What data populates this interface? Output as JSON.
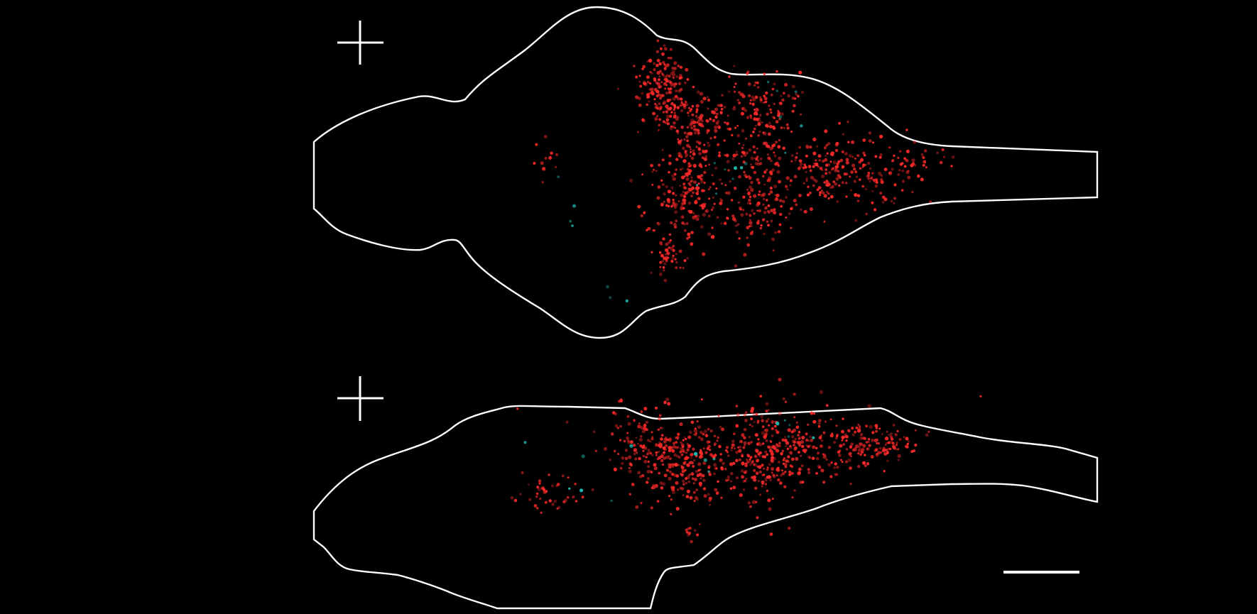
{
  "figure": {
    "background_color": "#000000",
    "outline_color": "#ffffff",
    "primary_cell_color": "#ff2a2a",
    "secondary_cell_color": "#1fb8b0",
    "panels": [
      {
        "id": "dorsal-view",
        "orientation_marker": "cross-icon",
        "outline": "brain-outline",
        "cells": "red-and-cyan-cells"
      },
      {
        "id": "lateral-view",
        "orientation_marker": "cross-icon",
        "outline": "brain-outline",
        "cells": "red-and-cyan-cells"
      }
    ],
    "scale_bar": "scale-bar"
  }
}
